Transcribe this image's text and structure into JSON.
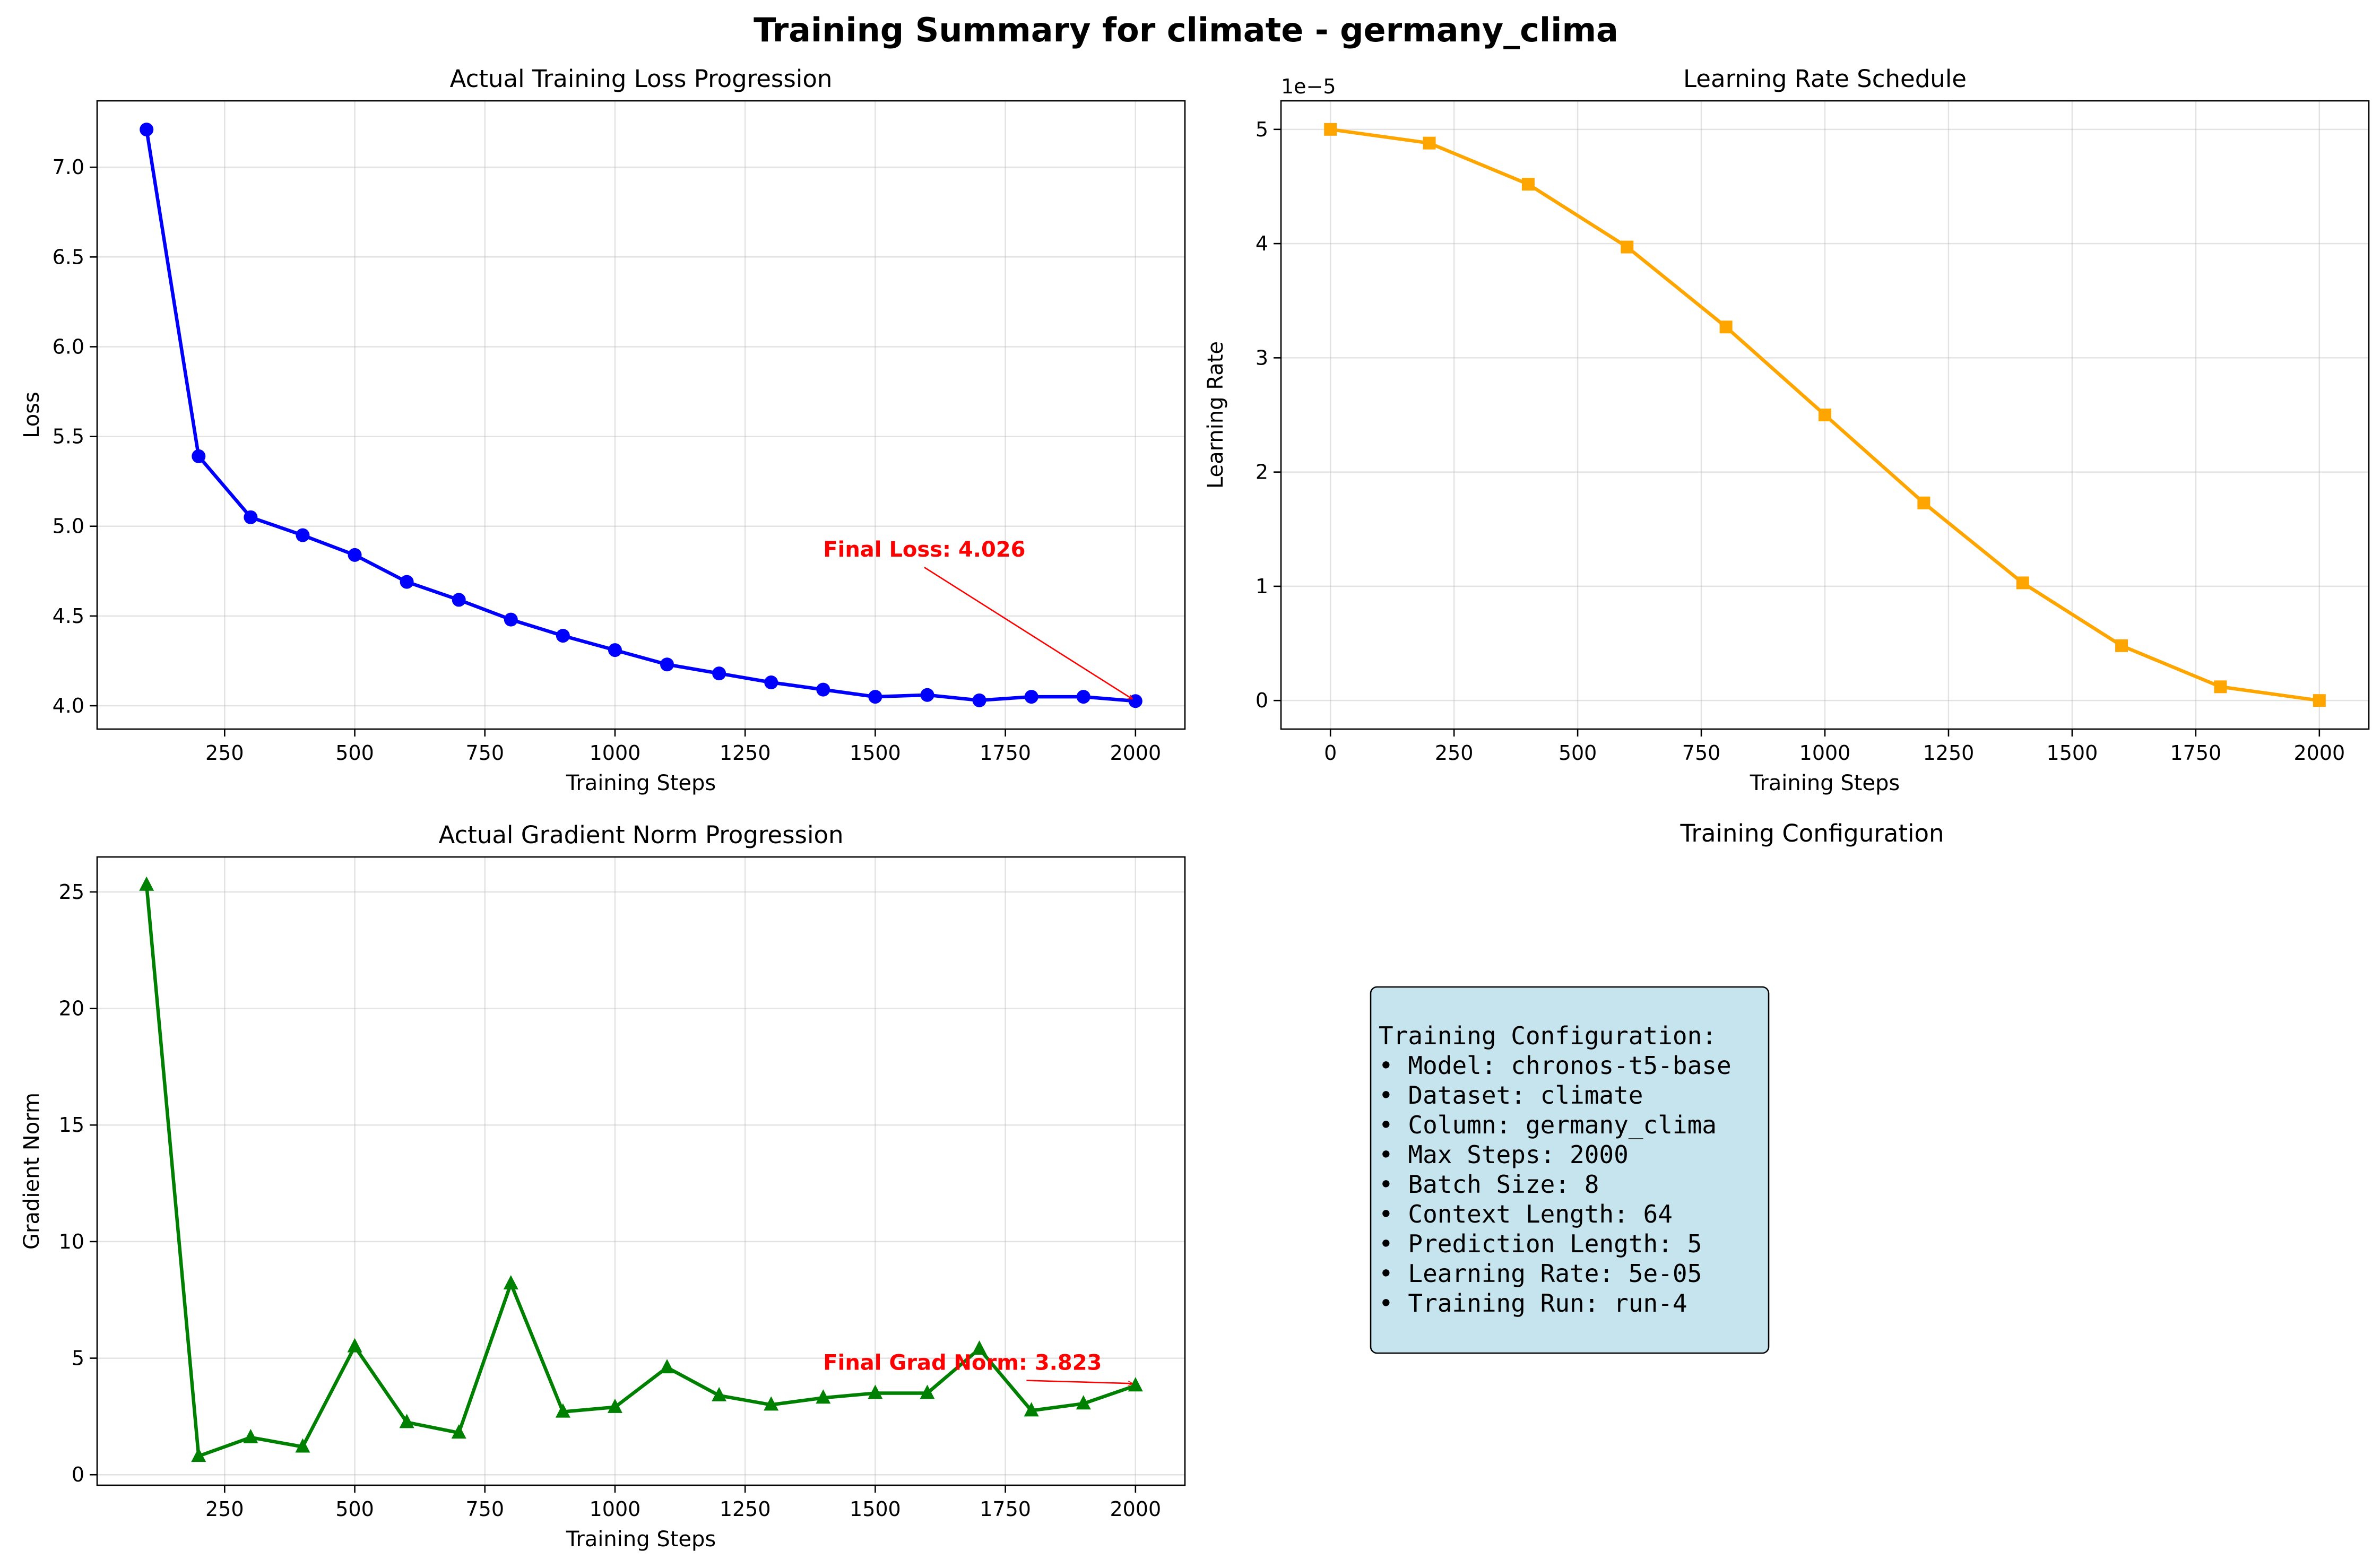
{
  "suptitle": "Training Summary for climate - germany_clima",
  "colors": {
    "loss": "#0000ff",
    "lr": "#ffa500",
    "grad": "#008000",
    "annotation": "#ff0000",
    "config_box": "#add8e6"
  },
  "chart_data": [
    {
      "id": "loss",
      "type": "line",
      "title": "Actual Training Loss Progression",
      "xlabel": "Training Steps",
      "ylabel": "Loss",
      "marker": "circle",
      "grid": true,
      "xlim": [
        5,
        2095
      ],
      "ylim": [
        3.87,
        7.37
      ],
      "xticks": [
        250,
        500,
        750,
        1000,
        1250,
        1500,
        1750,
        2000
      ],
      "yticks": [
        4.0,
        4.5,
        5.0,
        5.5,
        6.0,
        6.5,
        7.0
      ],
      "ytick_labels": [
        "4.0",
        "4.5",
        "5.0",
        "5.5",
        "6.0",
        "6.5",
        "7.0"
      ],
      "series": [
        {
          "x": [
            100,
            200,
            300,
            400,
            500,
            600,
            700,
            800,
            900,
            1000,
            1100,
            1200,
            1300,
            1400,
            1500,
            1600,
            1700,
            1800,
            1900,
            2000
          ],
          "values": [
            7.21,
            5.39,
            5.05,
            4.95,
            4.84,
            4.69,
            4.59,
            4.48,
            4.39,
            4.31,
            4.23,
            4.18,
            4.13,
            4.09,
            4.05,
            4.06,
            4.03,
            4.05,
            4.05,
            4.026
          ]
        }
      ],
      "annotation": {
        "text": "Final Loss: 4.026",
        "text_x": 1400,
        "text_y": 4.83,
        "target_x": 2000,
        "target_y": 4.026
      }
    },
    {
      "id": "lr",
      "type": "line",
      "title": "Learning Rate Schedule",
      "xlabel": "Training Steps",
      "ylabel": "Learning Rate",
      "marker": "square",
      "grid": true,
      "offset_label": "1e−5",
      "scale": 1e-05,
      "xlim": [
        -100,
        2100
      ],
      "ylim": [
        -0.25,
        5.25
      ],
      "xticks": [
        0,
        250,
        500,
        750,
        1000,
        1250,
        1500,
        1750,
        2000
      ],
      "yticks": [
        0,
        1,
        2,
        3,
        4,
        5
      ],
      "ytick_labels": [
        "0",
        "1",
        "2",
        "3",
        "4",
        "5"
      ],
      "series": [
        {
          "x": [
            0,
            200,
            400,
            600,
            800,
            1000,
            1200,
            1400,
            1600,
            1800,
            2000
          ],
          "values": [
            5.0,
            4.88,
            4.52,
            3.97,
            3.27,
            2.5,
            1.73,
            1.03,
            0.48,
            0.12,
            0.0
          ]
        }
      ]
    },
    {
      "id": "grad",
      "type": "line",
      "title": "Actual Gradient Norm Progression",
      "xlabel": "Training Steps",
      "ylabel": "Gradient Norm",
      "marker": "triangle",
      "grid": true,
      "xlim": [
        5,
        2095
      ],
      "ylim": [
        -0.45,
        26.5
      ],
      "xticks": [
        250,
        500,
        750,
        1000,
        1250,
        1500,
        1750,
        2000
      ],
      "yticks": [
        0,
        5,
        10,
        15,
        20,
        25
      ],
      "ytick_labels": [
        "0",
        "5",
        "10",
        "15",
        "20",
        "25"
      ],
      "series": [
        {
          "x": [
            100,
            200,
            300,
            400,
            500,
            600,
            700,
            800,
            900,
            1000,
            1100,
            1200,
            1300,
            1400,
            1500,
            1600,
            1700,
            1800,
            1900,
            2000
          ],
          "values": [
            25.3,
            0.8,
            1.6,
            1.2,
            5.5,
            2.25,
            1.8,
            8.2,
            2.7,
            2.9,
            4.6,
            3.4,
            3.0,
            3.3,
            3.5,
            3.5,
            5.4,
            2.75,
            3.05,
            3.823
          ]
        }
      ],
      "annotation": {
        "text": "Final Grad Norm: 3.823",
        "text_x": 1400,
        "text_y": 4.5,
        "target_x": 2000,
        "target_y": 3.823
      }
    }
  ],
  "config_panel": {
    "title": "Training Configuration",
    "lines": [
      "Training Configuration:",
      "• Model: chronos-t5-base",
      "• Dataset: climate",
      "• Column: germany_clima",
      "• Max Steps: 2000",
      "• Batch Size: 8",
      "• Context Length: 64",
      "• Prediction Length: 5",
      "• Learning Rate: 5e-05",
      "• Training Run: run-4"
    ]
  }
}
